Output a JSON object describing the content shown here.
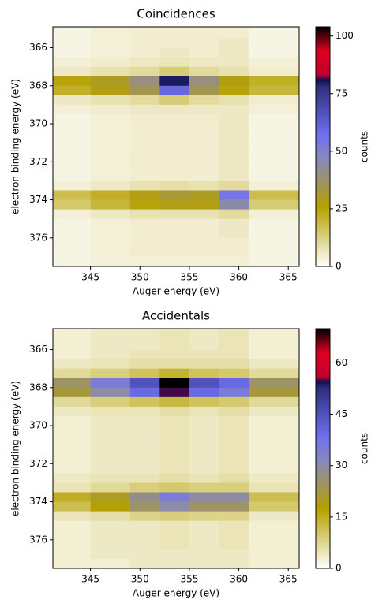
{
  "chart_data": [
    {
      "type": "heatmap",
      "title": "Coincidences",
      "xlabel": "Auger energy (eV)",
      "ylabel": "electron binding energy (eV)",
      "colorbar_label": "counts",
      "xlim": [
        341.2,
        366.1
      ],
      "xticks": [
        345,
        350,
        355,
        360,
        365
      ],
      "ylim": [
        364.9,
        377.5
      ],
      "yticks": [
        366,
        368,
        370,
        372,
        374,
        376
      ],
      "y_inverted": true,
      "clim": [
        0,
        104
      ],
      "cticks": [
        0,
        25,
        50,
        75,
        100
      ],
      "colormap": [
        [
          0,
          "#ffffff"
        ],
        [
          0.25,
          "#b5a000"
        ],
        [
          0.45,
          "#8888bb"
        ],
        [
          0.55,
          "#7070f0"
        ],
        [
          0.75,
          "#303080"
        ],
        [
          0.78,
          "#101050"
        ],
        [
          0.8,
          "#c00030"
        ],
        [
          0.9,
          "#e00020"
        ],
        [
          1,
          "#000000"
        ]
      ],
      "x_edges": [
        341.2,
        345,
        349,
        352,
        355,
        358,
        361,
        366.1
      ],
      "y_edges": [
        364.9,
        365.5,
        366,
        366.5,
        367,
        367.5,
        368,
        368.5,
        369,
        369.5,
        370,
        370.5,
        371,
        371.5,
        372,
        372.5,
        373,
        373.5,
        374,
        374.5,
        375,
        375.5,
        376,
        376.5,
        377,
        377.5
      ],
      "z": [
        [
          3,
          4,
          5,
          5,
          5,
          5,
          3
        ],
        [
          3,
          4,
          5,
          5,
          5,
          6,
          3
        ],
        [
          3,
          4,
          5,
          6,
          5,
          6,
          3
        ],
        [
          4,
          5,
          6,
          7,
          6,
          6,
          4
        ],
        [
          6,
          8,
          10,
          14,
          10,
          8,
          5
        ],
        [
          25,
          30,
          40,
          80,
          40,
          28,
          22
        ],
        [
          22,
          28,
          35,
          60,
          35,
          25,
          20
        ],
        [
          6,
          8,
          10,
          14,
          10,
          8,
          5
        ],
        [
          4,
          5,
          6,
          6,
          6,
          6,
          4
        ],
        [
          3,
          4,
          5,
          5,
          5,
          6,
          3
        ],
        [
          3,
          4,
          5,
          5,
          5,
          6,
          3
        ],
        [
          3,
          4,
          5,
          5,
          5,
          6,
          3
        ],
        [
          3,
          4,
          5,
          5,
          5,
          6,
          3
        ],
        [
          3,
          4,
          5,
          5,
          5,
          6,
          3
        ],
        [
          3,
          4,
          5,
          5,
          5,
          6,
          3
        ],
        [
          3,
          4,
          5,
          5,
          5,
          6,
          3
        ],
        [
          4,
          6,
          8,
          9,
          8,
          10,
          4
        ],
        [
          18,
          22,
          28,
          32,
          30,
          55,
          18
        ],
        [
          15,
          20,
          25,
          28,
          28,
          45,
          14
        ],
        [
          4,
          6,
          8,
          8,
          8,
          10,
          4
        ],
        [
          3,
          4,
          5,
          5,
          5,
          6,
          3
        ],
        [
          3,
          4,
          5,
          5,
          5,
          6,
          3
        ],
        [
          3,
          4,
          5,
          5,
          5,
          5,
          3
        ],
        [
          3,
          4,
          5,
          5,
          5,
          5,
          3
        ],
        [
          3,
          4,
          4,
          4,
          4,
          4,
          3
        ]
      ]
    },
    {
      "type": "heatmap",
      "title": "Accidentals",
      "xlabel": "Auger energy (eV)",
      "ylabel": "electron binding energy (eV)",
      "colorbar_label": "counts",
      "xlim": [
        341.2,
        366.1
      ],
      "xticks": [
        345,
        350,
        355,
        360,
        365
      ],
      "ylim": [
        364.9,
        377.5
      ],
      "yticks": [
        366,
        368,
        370,
        372,
        374,
        376
      ],
      "y_inverted": true,
      "clim": [
        0,
        70
      ],
      "cticks": [
        0,
        15,
        30,
        45,
        60
      ],
      "colormap": [
        [
          0,
          "#ffffff"
        ],
        [
          0.25,
          "#b5a000"
        ],
        [
          0.45,
          "#8888bb"
        ],
        [
          0.55,
          "#7070f0"
        ],
        [
          0.75,
          "#303080"
        ],
        [
          0.78,
          "#101050"
        ],
        [
          0.8,
          "#c00030"
        ],
        [
          0.9,
          "#e00020"
        ],
        [
          1,
          "#000000"
        ]
      ],
      "x_edges": [
        341.2,
        345,
        349,
        352,
        355,
        358,
        361,
        366.1
      ],
      "y_edges": [
        364.9,
        365.5,
        366,
        366.5,
        367,
        367.5,
        368,
        368.5,
        369,
        369.5,
        370,
        370.5,
        371,
        371.5,
        372,
        372.5,
        373,
        373.5,
        374,
        374.5,
        375,
        375.5,
        376,
        376.5,
        377,
        377.5
      ],
      "z": [
        [
          3,
          4,
          4,
          5,
          4,
          5,
          3
        ],
        [
          3,
          4,
          4,
          5,
          4,
          5,
          3
        ],
        [
          3,
          4,
          5,
          5,
          5,
          5,
          3
        ],
        [
          4,
          5,
          6,
          6,
          6,
          6,
          4
        ],
        [
          7,
          9,
          11,
          14,
          11,
          10,
          7
        ],
        [
          25,
          35,
          45,
          70,
          45,
          40,
          25
        ],
        [
          22,
          30,
          40,
          55,
          40,
          35,
          22
        ],
        [
          7,
          9,
          11,
          13,
          11,
          10,
          7
        ],
        [
          4,
          5,
          5,
          6,
          5,
          6,
          4
        ],
        [
          3,
          4,
          4,
          5,
          4,
          5,
          3
        ],
        [
          3,
          4,
          4,
          5,
          4,
          5,
          3
        ],
        [
          3,
          4,
          4,
          5,
          4,
          5,
          3
        ],
        [
          3,
          4,
          4,
          5,
          4,
          5,
          3
        ],
        [
          3,
          4,
          4,
          5,
          4,
          5,
          3
        ],
        [
          3,
          4,
          4,
          5,
          4,
          5,
          3
        ],
        [
          4,
          5,
          5,
          6,
          5,
          6,
          4
        ],
        [
          5,
          7,
          9,
          10,
          9,
          9,
          5
        ],
        [
          15,
          20,
          28,
          35,
          30,
          30,
          12
        ],
        [
          12,
          18,
          25,
          30,
          25,
          25,
          10
        ],
        [
          5,
          6,
          8,
          9,
          8,
          8,
          4
        ],
        [
          3,
          4,
          4,
          5,
          4,
          5,
          3
        ],
        [
          3,
          4,
          4,
          5,
          4,
          5,
          3
        ],
        [
          3,
          4,
          4,
          5,
          4,
          5,
          3
        ],
        [
          3,
          4,
          4,
          4,
          4,
          4,
          3
        ],
        [
          3,
          3,
          4,
          4,
          4,
          4,
          3
        ]
      ]
    }
  ]
}
